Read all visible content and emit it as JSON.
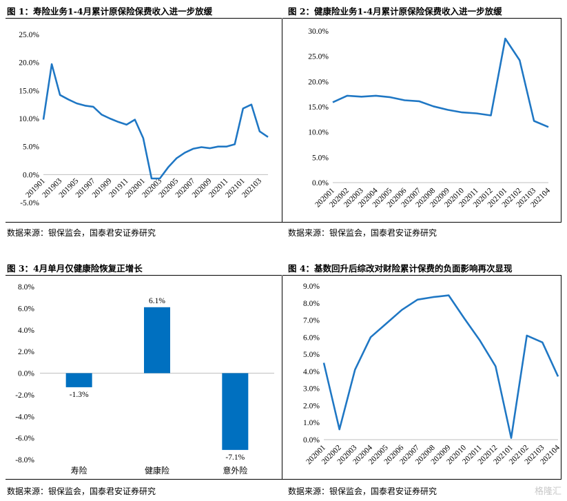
{
  "panels": [
    {
      "title": "图 1：寿险业务1-4月累计原保险保费收入进一步放缓",
      "source": "数据来源：银保监会，国泰君安证券研究"
    },
    {
      "title": "图 2：健康险业务1-4月累计原保险保费收入进一步放缓",
      "source": "数据来源：银保监会，国泰君安证券研究"
    },
    {
      "title": "图 3：4月单月仅健康险恢复正增长",
      "source": "数据来源：银保监会，国泰君安证券研究"
    },
    {
      "title": "图 4：基数回升后综改对财险累计保费的负面影响再次显现",
      "source": "数据来源：银保监会，国泰君安证券研究"
    }
  ],
  "watermark": "格隆汇",
  "chart_data": [
    {
      "type": "line",
      "color": "#1f77c4",
      "x": [
        "201901",
        "201902",
        "201903",
        "201904",
        "201905",
        "201906",
        "201907",
        "201908",
        "201909",
        "201910",
        "201911",
        "201912",
        "202001",
        "202002",
        "202003",
        "202004",
        "202005",
        "202006",
        "202007",
        "202008",
        "202009",
        "202010",
        "202011",
        "202012",
        "202101",
        "202102",
        "202103",
        "202104"
      ],
      "xticks": [
        "201901",
        "201903",
        "201905",
        "201907",
        "201909",
        "201911",
        "202001",
        "202003",
        "202005",
        "202007",
        "202009",
        "202011",
        "202101",
        "202103"
      ],
      "values": [
        9.8,
        19.7,
        14.2,
        13.4,
        12.7,
        12.3,
        12.1,
        10.7,
        10.0,
        9.4,
        8.9,
        9.8,
        6.5,
        -0.7,
        -0.7,
        1.3,
        2.9,
        3.9,
        4.6,
        4.9,
        4.7,
        5.0,
        5.0,
        5.4,
        11.8,
        12.5,
        7.7,
        6.7
      ],
      "ylim": [
        -5,
        25
      ],
      "yticks": [
        "-5.0%",
        "0.0%",
        "5.0%",
        "10.0%",
        "15.0%",
        "20.0%",
        "25.0%"
      ]
    },
    {
      "type": "line",
      "color": "#1f77c4",
      "x": [
        "202001",
        "202002",
        "202003",
        "202004",
        "202005",
        "202006",
        "202007",
        "202008",
        "202009",
        "202010",
        "202011",
        "202012",
        "202101",
        "202102",
        "202103",
        "202104"
      ],
      "values": [
        15.9,
        17.2,
        17.0,
        17.2,
        16.9,
        16.3,
        16.1,
        15.1,
        14.4,
        13.9,
        13.7,
        13.3,
        28.5,
        24.2,
        12.2,
        11.0
      ],
      "ylim": [
        0,
        30
      ],
      "yticks": [
        "0.0%",
        "5.0%",
        "10.0%",
        "15.0%",
        "20.0%",
        "25.0%",
        "30.0%"
      ]
    },
    {
      "type": "bar",
      "color": "#0070c0",
      "categories": [
        "寿险",
        "健康险",
        "意外险"
      ],
      "values": [
        -1.3,
        6.1,
        -7.1
      ],
      "data_labels": [
        "-1.3%",
        "6.1%",
        "-7.1%"
      ],
      "ylim": [
        -8,
        8
      ],
      "yticks": [
        "-8.0%",
        "-6.0%",
        "-4.0%",
        "-2.0%",
        "0.0%",
        "2.0%",
        "4.0%",
        "6.0%",
        "8.0%"
      ]
    },
    {
      "type": "line",
      "color": "#1f77c4",
      "x": [
        "202001",
        "202002",
        "202003",
        "202004",
        "202005",
        "202006",
        "202007",
        "202008",
        "202009",
        "202010",
        "202011",
        "202012",
        "202101",
        "202102",
        "202103",
        "202104"
      ],
      "values": [
        4.5,
        0.6,
        4.1,
        6.0,
        6.8,
        7.6,
        8.2,
        8.35,
        8.45,
        7.1,
        5.8,
        4.3,
        0.1,
        6.1,
        5.7,
        3.7
      ],
      "ylim": [
        0,
        9
      ],
      "yticks": [
        "0.0%",
        "1.0%",
        "2.0%",
        "3.0%",
        "4.0%",
        "5.0%",
        "6.0%",
        "7.0%",
        "8.0%",
        "9.0%"
      ]
    }
  ]
}
